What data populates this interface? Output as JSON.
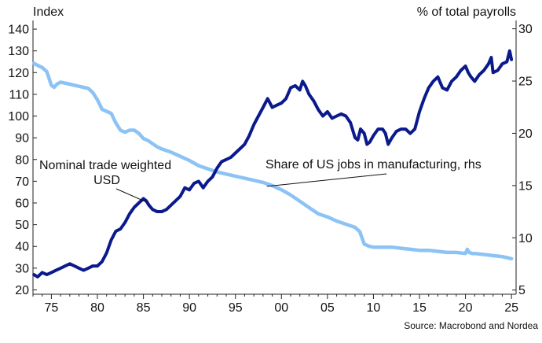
{
  "chart_data": {
    "type": "line",
    "left_axis_title": "Index",
    "right_axis_title": "% of total payrolls",
    "source": "Source: Macrobond and Nordea",
    "x_tick_labels": [
      "75",
      "80",
      "85",
      "90",
      "95",
      "00",
      "05",
      "10",
      "15",
      "20",
      "25"
    ],
    "x_tick_years": [
      1975,
      1980,
      1985,
      1990,
      1995,
      2000,
      2005,
      2010,
      2015,
      2020,
      2025
    ],
    "xlim": [
      1973,
      2025.5
    ],
    "y_left_ticks": [
      20,
      30,
      40,
      50,
      60,
      70,
      80,
      90,
      100,
      110,
      120,
      130,
      140
    ],
    "ylim_left": [
      18,
      144
    ],
    "y_right_ticks": [
      5,
      10,
      15,
      20,
      25,
      30
    ],
    "ylim_right": [
      4.6,
      30.8
    ],
    "series": [
      {
        "name": "Nominal trade weighted USD",
        "axis": "left",
        "color": "#0a1a8c",
        "x": [
          1973.1,
          1973.5,
          1974.0,
          1974.5,
          1975.0,
          1975.5,
          1976.0,
          1976.5,
          1977.0,
          1977.5,
          1978.0,
          1978.5,
          1979.0,
          1979.5,
          1980.0,
          1980.5,
          1981.0,
          1981.5,
          1982.0,
          1982.5,
          1983.0,
          1983.5,
          1984.0,
          1984.5,
          1985.0,
          1985.3,
          1985.6,
          1986.0,
          1986.5,
          1987.0,
          1987.5,
          1988.0,
          1988.5,
          1989.0,
          1989.5,
          1990.0,
          1990.5,
          1991.0,
          1991.5,
          1992.0,
          1992.5,
          1993.0,
          1993.5,
          1994.0,
          1994.5,
          1995.0,
          1995.5,
          1996.0,
          1996.5,
          1997.0,
          1997.5,
          1998.0,
          1998.5,
          1999.0,
          1999.5,
          2000.0,
          2000.5,
          2001.0,
          2001.5,
          2002.0,
          2002.3,
          2002.6,
          2003.0,
          2003.5,
          2004.0,
          2004.5,
          2005.0,
          2005.5,
          2006.0,
          2006.5,
          2007.0,
          2007.5,
          2008.0,
          2008.3,
          2008.6,
          2009.0,
          2009.3,
          2009.6,
          2010.0,
          2010.5,
          2011.0,
          2011.3,
          2011.6,
          2012.0,
          2012.5,
          2013.0,
          2013.5,
          2014.0,
          2014.5,
          2015.0,
          2015.5,
          2016.0,
          2016.5,
          2017.0,
          2017.5,
          2018.0,
          2018.5,
          2019.0,
          2019.5,
          2020.0,
          2020.3,
          2020.6,
          2021.0,
          2021.5,
          2022.0,
          2022.5,
          2022.8,
          2023.0,
          2023.5,
          2024.0,
          2024.5,
          2024.8,
          2025.0
        ],
        "values": [
          27,
          26,
          28,
          27,
          28,
          29,
          30,
          31,
          32,
          31,
          30,
          29,
          30,
          31,
          31,
          33,
          37,
          43,
          47,
          48,
          51,
          55,
          58,
          60,
          62,
          61,
          59,
          57,
          56,
          56,
          57,
          59,
          61,
          63,
          67,
          66,
          69,
          70,
          67,
          70,
          72,
          76,
          79,
          80,
          81,
          83,
          85,
          87,
          91,
          96,
          100,
          104,
          108,
          104,
          105,
          106,
          108,
          113,
          114,
          112,
          116,
          114,
          110,
          107,
          103,
          100,
          102,
          99,
          100,
          101,
          100,
          97,
          90,
          89,
          94,
          92,
          87,
          88,
          91,
          94,
          94,
          92,
          87,
          90,
          93,
          94,
          94,
          92,
          94,
          102,
          108,
          113,
          116,
          118,
          113,
          112,
          116,
          118,
          121,
          123,
          120,
          118,
          116,
          119,
          121,
          124,
          127,
          120,
          121,
          124,
          125,
          130,
          126
        ]
      },
      {
        "name": "Share of US jobs in manufacturing, rhs",
        "axis": "right",
        "color": "#8cc3f5",
        "x": [
          1973.1,
          1973.5,
          1974.0,
          1974.5,
          1975.0,
          1975.3,
          1975.6,
          1976.0,
          1976.5,
          1977.0,
          1977.5,
          1978.0,
          1978.5,
          1979.0,
          1979.5,
          1980.0,
          1980.5,
          1981.0,
          1981.5,
          1982.0,
          1982.5,
          1983.0,
          1983.5,
          1984.0,
          1984.5,
          1985.0,
          1985.5,
          1986.0,
          1986.5,
          1987.0,
          1988.0,
          1989.0,
          1990.0,
          1991.0,
          1992.0,
          1993.0,
          1994.0,
          1995.0,
          1996.0,
          1997.0,
          1998.0,
          1999.0,
          2000.0,
          2001.0,
          2002.0,
          2003.0,
          2004.0,
          2005.0,
          2006.0,
          2007.0,
          2008.0,
          2008.5,
          2009.0,
          2009.5,
          2010.0,
          2011.0,
          2012.0,
          2013.0,
          2014.0,
          2015.0,
          2016.0,
          2017.0,
          2018.0,
          2019.0,
          2020.0,
          2020.2,
          2020.4,
          2020.7,
          2021.0,
          2022.0,
          2023.0,
          2024.0,
          2025.0
        ],
        "values": [
          26.7,
          26.5,
          26.3,
          25.9,
          24.6,
          24.4,
          24.7,
          24.9,
          24.8,
          24.7,
          24.6,
          24.5,
          24.4,
          24.3,
          23.9,
          23.2,
          22.3,
          22.1,
          21.9,
          21.0,
          20.3,
          20.1,
          20.3,
          20.3,
          20.0,
          19.5,
          19.3,
          19.0,
          18.7,
          18.5,
          18.2,
          17.8,
          17.4,
          16.9,
          16.6,
          16.3,
          16.1,
          15.9,
          15.7,
          15.5,
          15.3,
          15.0,
          14.6,
          14.1,
          13.5,
          12.9,
          12.3,
          12.0,
          11.6,
          11.3,
          11.0,
          10.6,
          9.4,
          9.2,
          9.1,
          9.1,
          9.1,
          9.0,
          8.9,
          8.8,
          8.8,
          8.7,
          8.6,
          8.6,
          8.5,
          8.9,
          8.6,
          8.5,
          8.5,
          8.4,
          8.3,
          8.2,
          8.0
        ]
      }
    ],
    "annotations": [
      {
        "text_lines": [
          "Nominal trade weighted",
          "USD"
        ],
        "target_year": 1985.4,
        "target_value": 61,
        "target_axis": "left"
      },
      {
        "text_lines": [
          "Share of US jobs in manufacturing, rhs"
        ],
        "target_year": 1998.4,
        "target_value": 15.0,
        "target_axis": "right"
      }
    ],
    "grid": false,
    "legend": "none"
  }
}
